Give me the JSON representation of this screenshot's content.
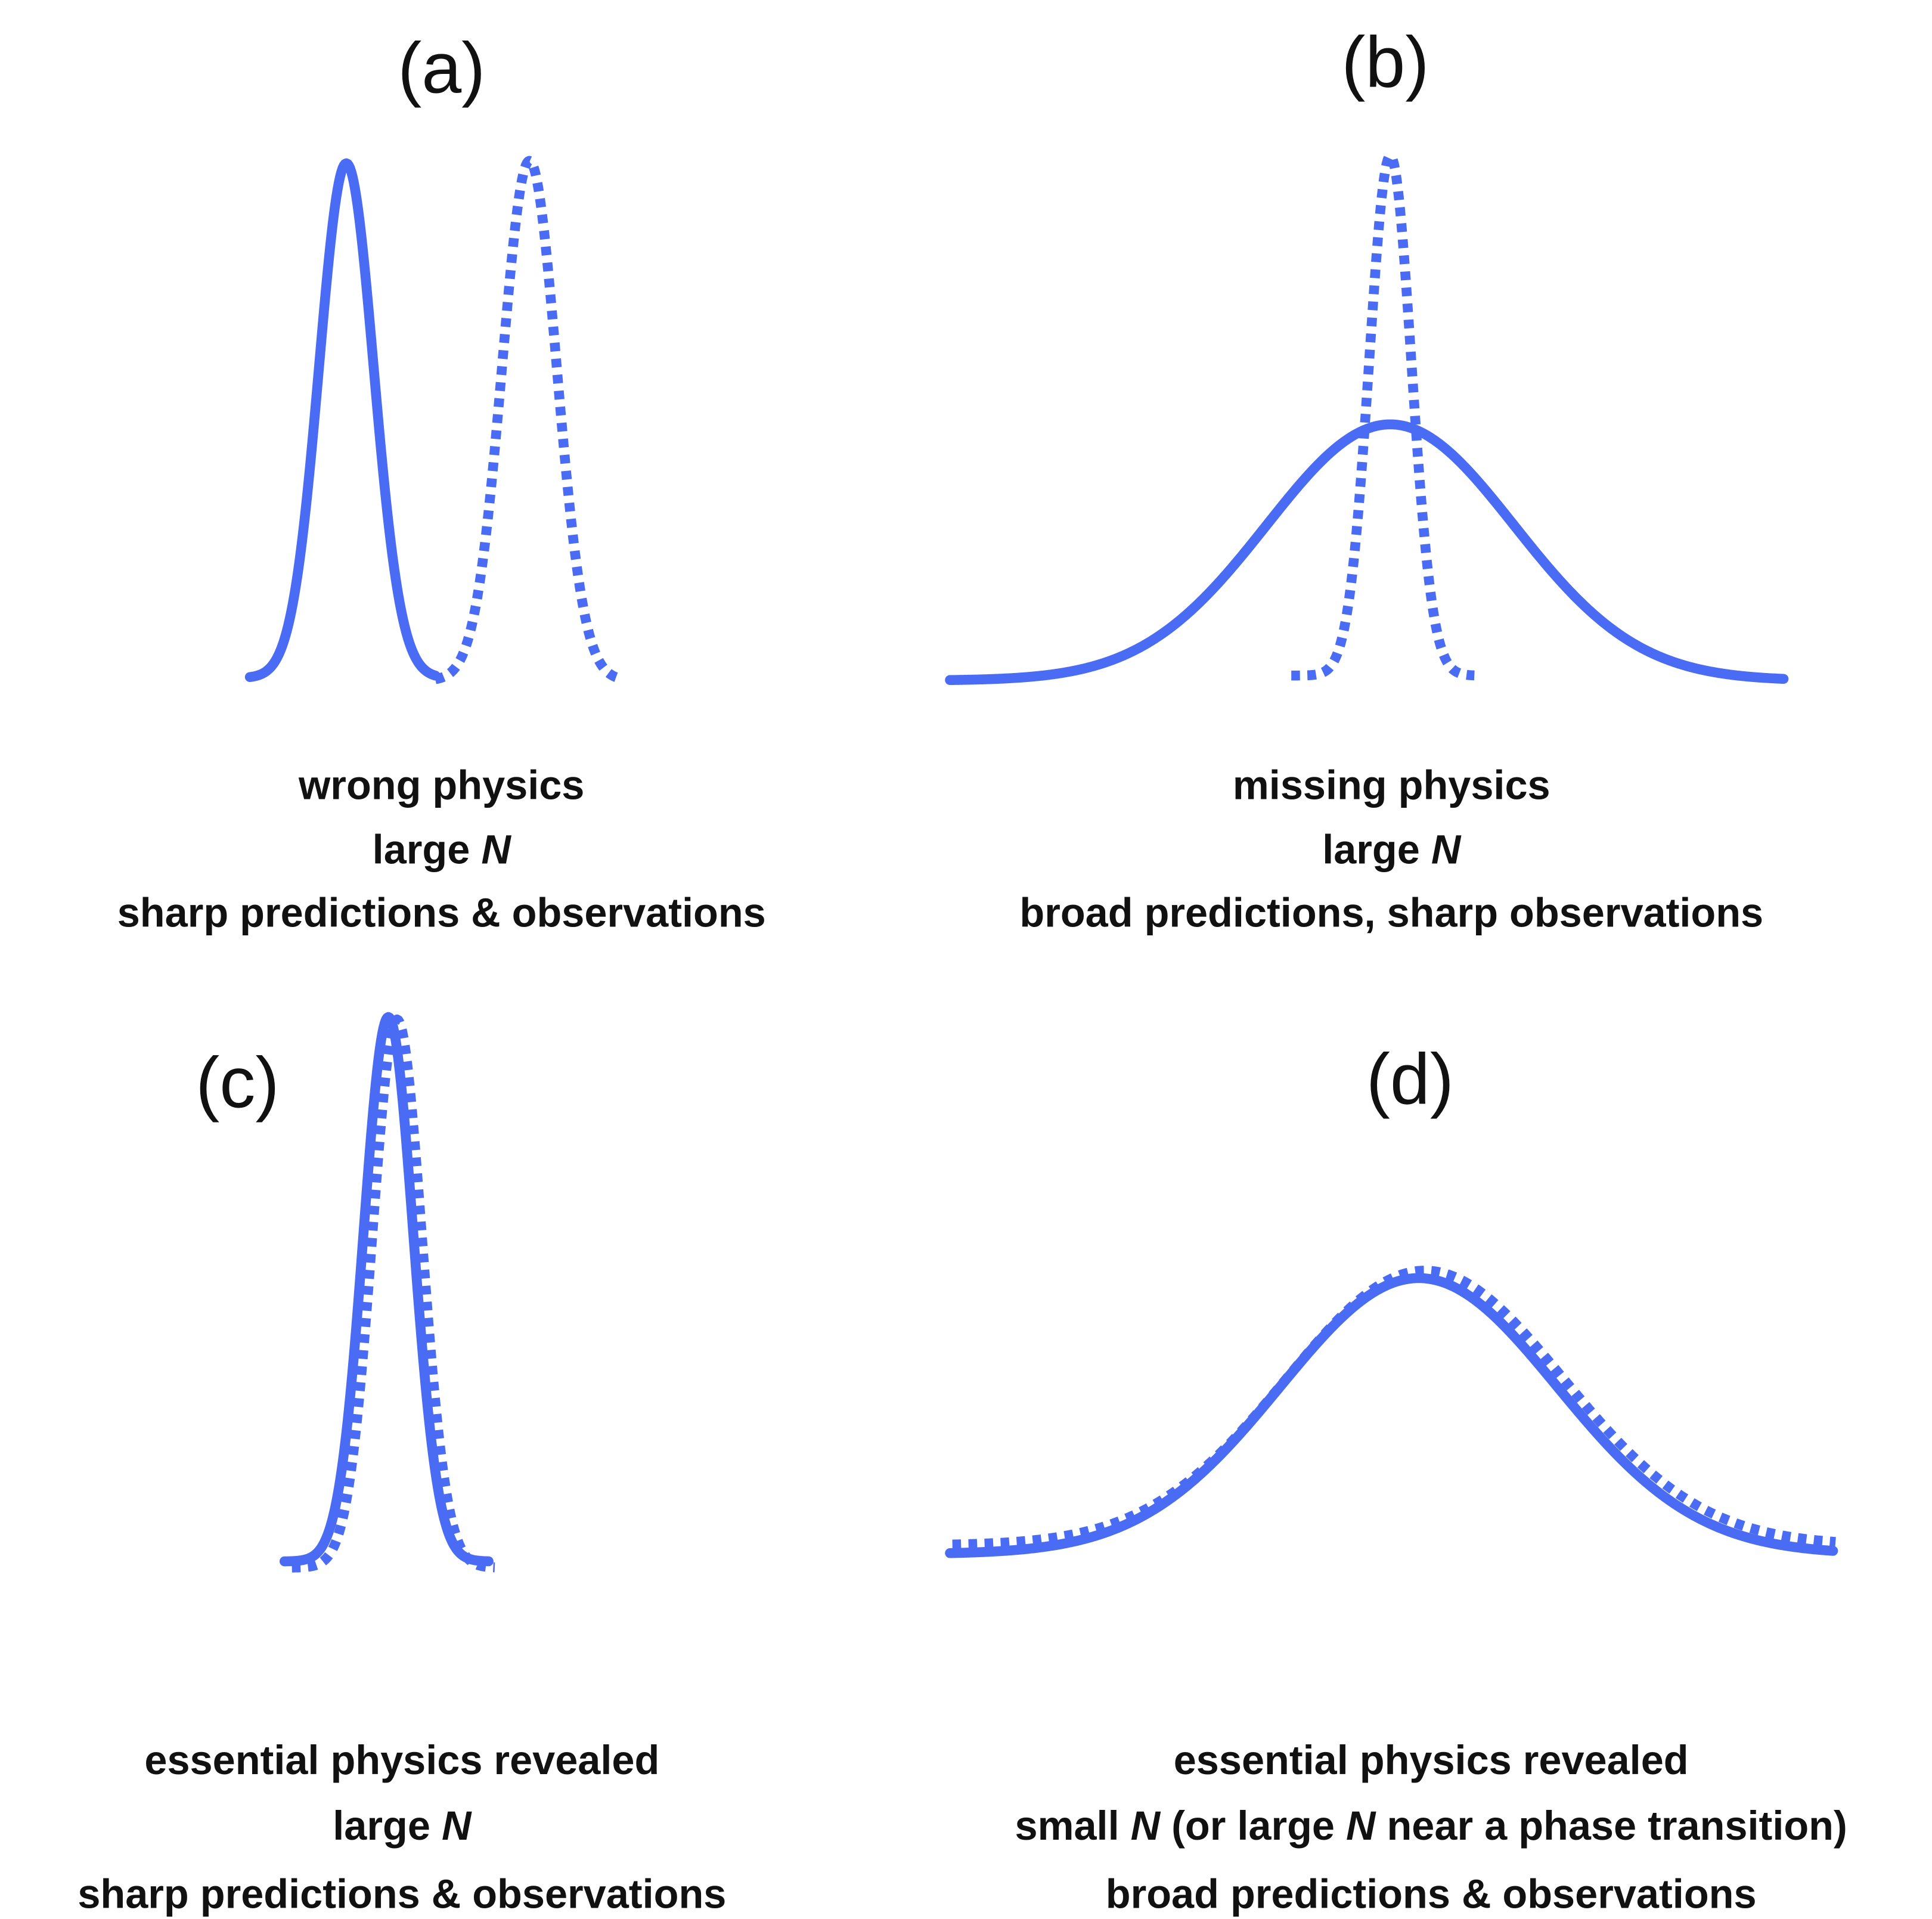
{
  "panels": [
    {
      "label": "(a)",
      "caption": [
        [
          "wrong physics"
        ],
        [
          "large ",
          "N"
        ],
        [
          "sharp predictions & observations"
        ]
      ]
    },
    {
      "label": "(b)",
      "caption": [
        [
          "missing physics"
        ],
        [
          "large ",
          "N"
        ],
        [
          "broad predictions, sharp observations"
        ]
      ]
    },
    {
      "label": "(c)",
      "caption": [
        [
          "essential physics revealed"
        ],
        [
          "large ",
          "N"
        ],
        [
          "sharp predictions & observations"
        ]
      ]
    },
    {
      "label": "(d)",
      "caption": [
        [
          "essential physics revealed"
        ],
        [
          "small ",
          "N",
          " (or large ",
          "N",
          " near a phase transition)"
        ],
        [
          "broad predictions & observations"
        ]
      ]
    }
  ]
}
